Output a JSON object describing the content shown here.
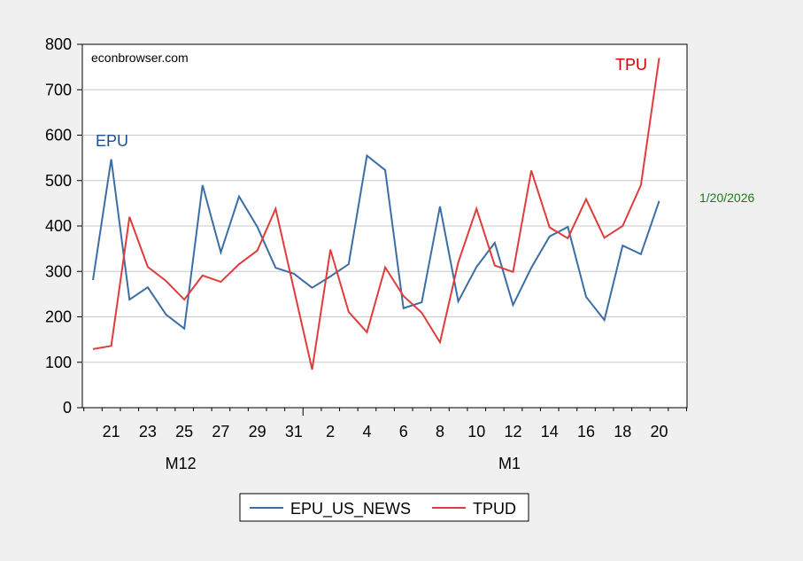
{
  "chart_data": {
    "type": "line",
    "title": "",
    "xlabel": "",
    "ylabel": "",
    "ylim": [
      0,
      800
    ],
    "yticks": [
      0,
      100,
      200,
      300,
      400,
      500,
      600,
      700,
      800
    ],
    "grid": true,
    "x": [
      "Dec 20",
      "Dec 21",
      "Dec 22",
      "Dec 23",
      "Dec 24",
      "Dec 25",
      "Dec 26",
      "Dec 27",
      "Dec 28",
      "Dec 29",
      "Dec 30",
      "Dec 31",
      "Jan 1",
      "Jan 2",
      "Jan 3",
      "Jan 4",
      "Jan 5",
      "Jan 6",
      "Jan 7",
      "Jan 8",
      "Jan 9",
      "Jan 10",
      "Jan 11",
      "Jan 12",
      "Jan 13",
      "Jan 14",
      "Jan 15",
      "Jan 16",
      "Jan 17",
      "Jan 18",
      "Jan 19",
      "Jan 20"
    ],
    "xtick_labels": [
      {
        "index": 1,
        "label": "21"
      },
      {
        "index": 3,
        "label": "23"
      },
      {
        "index": 5,
        "label": "25"
      },
      {
        "index": 7,
        "label": "27"
      },
      {
        "index": 9,
        "label": "29"
      },
      {
        "index": 11,
        "label": "31"
      },
      {
        "index": 13,
        "label": "2"
      },
      {
        "index": 15,
        "label": "4"
      },
      {
        "index": 17,
        "label": "6"
      },
      {
        "index": 19,
        "label": "8"
      },
      {
        "index": 21,
        "label": "10"
      },
      {
        "index": 23,
        "label": "12"
      },
      {
        "index": 25,
        "label": "14"
      },
      {
        "index": 27,
        "label": "16"
      },
      {
        "index": 29,
        "label": "18"
      },
      {
        "index": 31,
        "label": "20"
      }
    ],
    "month_labels": [
      {
        "index": 5,
        "label": "M12"
      },
      {
        "index": 23,
        "label": "M1"
      }
    ],
    "series": [
      {
        "name": "EPU_US_NEWS",
        "color": "#3c6ea6",
        "values": [
          281,
          547,
          238,
          265,
          205,
          174,
          490,
          342,
          465,
          398,
          308,
          295,
          264,
          289,
          316,
          555,
          523,
          219,
          232,
          443,
          234,
          310,
          363,
          226,
          308,
          377,
          398,
          244,
          193,
          357,
          338,
          455
        ]
      },
      {
        "name": "TPUD",
        "color": "#e03c3c",
        "values": [
          129,
          136,
          420,
          310,
          279,
          238,
          291,
          277,
          316,
          346,
          438,
          261,
          84,
          348,
          211,
          166,
          309,
          246,
          209,
          144,
          320,
          438,
          313,
          299,
          522,
          397,
          373,
          459,
          374,
          400,
          490,
          770
        ]
      }
    ],
    "legend": {
      "placement": "bottom-center",
      "entries": [
        "EPU_US_NEWS",
        "TPUD"
      ]
    },
    "annotations": {
      "watermark": "econbrowser.com",
      "epu_label": "EPU",
      "tpu_label": "TPU",
      "date_label": "1/20/2026",
      "epu_color": "#1f4e8c",
      "tpu_color": "#cc0000",
      "date_color": "#1a7a1a"
    }
  }
}
